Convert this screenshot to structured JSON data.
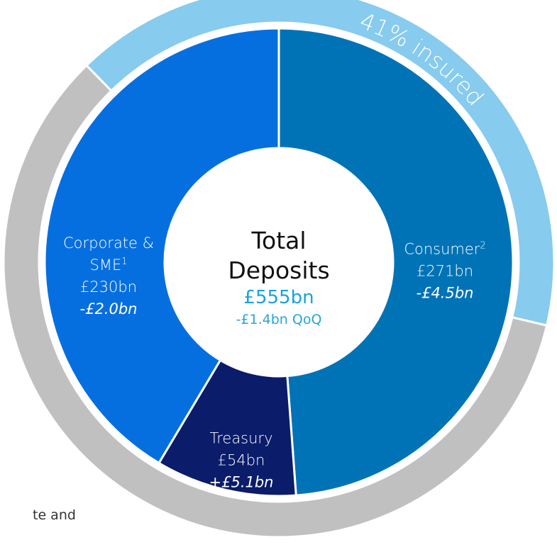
{
  "chart_data": {
    "type": "donut",
    "segments": [
      {
        "name": "Consumer",
        "footnote": "2",
        "color": "#0073b6",
        "values": 271,
        "value_labels": "£271bn",
        "change": -4.5,
        "change_label": "-£4.5bn"
      },
      {
        "name": "Treasury",
        "color": "#0a1c6a",
        "values": 54,
        "value_labels": "£54bn",
        "change": 5.1,
        "change_label": "+£5.1bn"
      },
      {
        "name": "Corporate & SME",
        "footnote": "1",
        "color": "#066fe0",
        "values": 230,
        "value_labels": "£230bn",
        "change": -2.0,
        "change_label": "-£2.0bn"
      }
    ],
    "center": {
      "title": "Total Deposits",
      "total": 555,
      "total_label": "£555bn",
      "change": -1.4,
      "change_label": "-£1.4bn QoQ"
    },
    "outer_ring": {
      "insured_pct": 41,
      "insured_label": "41% insured",
      "insured_color": "#87cbee",
      "other_color": "#c0c0c0"
    },
    "footnote_fragment": "te and"
  }
}
